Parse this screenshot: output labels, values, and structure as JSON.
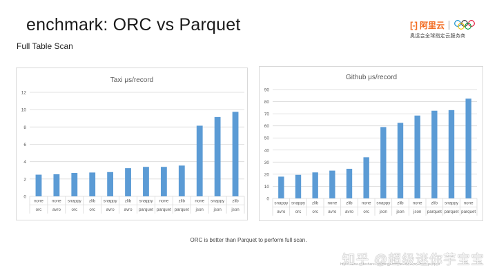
{
  "slide": {
    "title": "enchmark: ORC vs Parquet",
    "subtitle": "Full Table Scan",
    "caption": "ORC is better than Parquet to perform full scan.",
    "watermark": "知乎 @超级迷你芋宝宝",
    "url": "https://www.slideshare.net/dongjoonhyun/orc-benchmark-parquet"
  },
  "logo": {
    "mark": "[-]",
    "name": "阿里云",
    "tagline": "奥运会全球指定云服务商",
    "ring_colors": [
      "#0085c7",
      "#222222",
      "#df0024",
      "#f4c300",
      "#009f3d"
    ]
  },
  "colors": {
    "bar": "#5b9bd5",
    "grid": "#d9d9d9",
    "axis_text": "#595959"
  },
  "chart_data": [
    {
      "type": "bar",
      "title": "Taxi μs/record",
      "xlabel": "",
      "ylabel": "",
      "ylim": [
        0,
        12
      ],
      "yticks": [
        0,
        2,
        4,
        6,
        8,
        10,
        12
      ],
      "grid": true,
      "categories": [
        [
          "none",
          "orc"
        ],
        [
          "none",
          "avro"
        ],
        [
          "snappy",
          "orc"
        ],
        [
          "zlib",
          "orc"
        ],
        [
          "snappy",
          "avro"
        ],
        [
          "zlib",
          "avro"
        ],
        [
          "snappy",
          "parquet"
        ],
        [
          "none",
          "parquet"
        ],
        [
          "zlib",
          "parquet"
        ],
        [
          "none",
          "json"
        ],
        [
          "snappy",
          "json"
        ],
        [
          "zlib",
          "json"
        ]
      ],
      "values": [
        2.5,
        2.55,
        2.7,
        2.75,
        2.8,
        3.25,
        3.4,
        3.4,
        3.55,
        8.15,
        9.15,
        9.75
      ]
    },
    {
      "type": "bar",
      "title": "Github μs/record",
      "xlabel": "",
      "ylabel": "",
      "ylim": [
        0,
        90
      ],
      "yticks": [
        0,
        10,
        20,
        30,
        40,
        50,
        60,
        70,
        80,
        90
      ],
      "grid": true,
      "categories": [
        [
          "snappy",
          "avro"
        ],
        [
          "snappy",
          "orc"
        ],
        [
          "zlib",
          "orc"
        ],
        [
          "none",
          "avro"
        ],
        [
          "zlib",
          "avro"
        ],
        [
          "none",
          "orc"
        ],
        [
          "snappy",
          "json"
        ],
        [
          "zlib",
          "json"
        ],
        [
          "none",
          "json"
        ],
        [
          "zlib",
          "parquet"
        ],
        [
          "snappy",
          "parquet"
        ],
        [
          "none",
          "parquet"
        ]
      ],
      "values": [
        18,
        19.5,
        21.5,
        23,
        24.5,
        34,
        59,
        62.5,
        68.5,
        72.5,
        73,
        82.5
      ]
    }
  ]
}
